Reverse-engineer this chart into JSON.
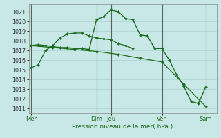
{
  "background_color": "#c8e8e8",
  "grid_color": "#a8d0d0",
  "line_color": "#1a6b1a",
  "xlabel": "Pression niveau de la mer( hPa )",
  "ylim": [
    1010.5,
    1021.8
  ],
  "yticks": [
    1011,
    1012,
    1013,
    1014,
    1015,
    1016,
    1017,
    1018,
    1019,
    1020,
    1021
  ],
  "xtick_labels": [
    "Mer",
    "Dim",
    "Jeu",
    "Ven",
    "Sam"
  ],
  "xtick_pos": [
    0,
    9,
    11,
    18,
    24
  ],
  "xlim": [
    -0.3,
    25.5
  ],
  "s1_x": [
    0,
    1,
    2,
    3,
    4,
    5,
    6,
    7,
    8,
    9,
    10,
    11,
    12,
    13,
    14
  ],
  "s1_y": [
    1015.2,
    1015.5,
    1017.0,
    1017.5,
    1018.3,
    1018.7,
    1018.8,
    1018.8,
    1018.5,
    1018.3,
    1018.2,
    1018.1,
    1017.7,
    1017.5,
    1017.2
  ],
  "s2_x": [
    0,
    1,
    2,
    3,
    4,
    5,
    6,
    7,
    8,
    9,
    10,
    11,
    12,
    13,
    14,
    15,
    16,
    17,
    18,
    19,
    20,
    21,
    22,
    23,
    24
  ],
  "s2_y": [
    1017.5,
    1017.6,
    1017.5,
    1017.4,
    1017.3,
    1017.3,
    1017.2,
    1017.2,
    1017.1,
    1020.2,
    1020.5,
    1021.2,
    1021.0,
    1020.3,
    1020.2,
    1018.6,
    1018.5,
    1017.2,
    1017.2,
    1016.0,
    1014.5,
    1013.3,
    1011.7,
    1011.5,
    1013.2
  ],
  "s3_x": [
    0,
    3,
    6,
    9,
    12,
    15,
    18,
    21,
    24
  ],
  "s3_y": [
    1017.5,
    1017.3,
    1017.1,
    1016.9,
    1016.6,
    1016.2,
    1015.8,
    1013.5,
    1011.2
  ]
}
